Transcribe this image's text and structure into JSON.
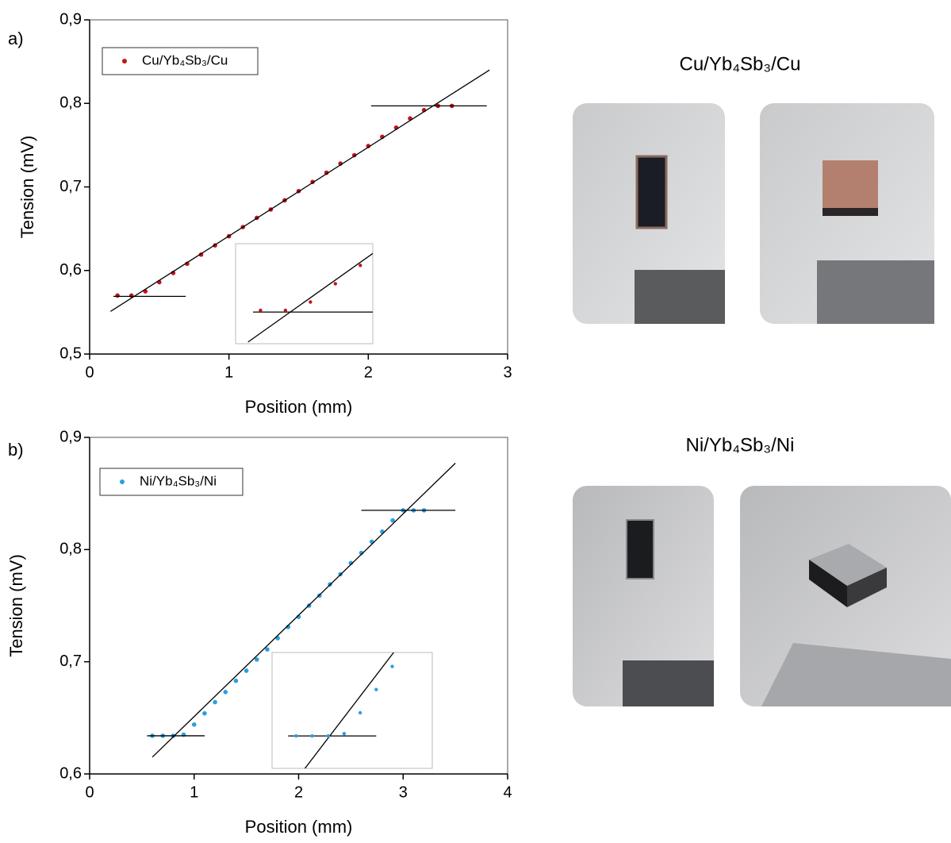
{
  "chart_data": [
    {
      "type": "scatter",
      "panel_label": "a)",
      "xlabel": "Position (mm)",
      "ylabel": "Tension (mV)",
      "xlim": [
        0,
        3
      ],
      "ylim": [
        0.5,
        0.9
      ],
      "xticks": [
        0,
        1,
        2,
        3
      ],
      "yticks": [
        {
          "value": 0.5,
          "label": "0,5"
        },
        {
          "value": 0.6,
          "label": "0,6"
        },
        {
          "value": 0.7,
          "label": "0,7"
        },
        {
          "value": 0.8,
          "label": "0,8"
        },
        {
          "value": 0.9,
          "label": "0,9"
        }
      ],
      "series": [
        {
          "name": "Cu/Yb₄Sb₃/Cu",
          "color": "#c0141c",
          "x": [
            0.2,
            0.3,
            0.4,
            0.5,
            0.6,
            0.7,
            0.8,
            0.9,
            1.0,
            1.1,
            1.2,
            1.3,
            1.4,
            1.5,
            1.6,
            1.7,
            1.8,
            1.9,
            2.0,
            2.1,
            2.2,
            2.3,
            2.4,
            2.5,
            2.6
          ],
          "values": [
            0.57,
            0.57,
            0.575,
            0.586,
            0.597,
            0.608,
            0.619,
            0.63,
            0.641,
            0.652,
            0.663,
            0.673,
            0.684,
            0.695,
            0.706,
            0.717,
            0.728,
            0.738,
            0.749,
            0.76,
            0.771,
            0.782,
            0.792,
            0.797,
            0.797
          ]
        }
      ],
      "fit_lines": [
        {
          "x": [
            0.17,
            0.69
          ],
          "values": [
            0.569,
            0.569
          ]
        },
        {
          "x": [
            0.15,
            2.87
          ],
          "values": [
            0.551,
            0.84
          ]
        },
        {
          "x": [
            2.02,
            2.85
          ],
          "values": [
            0.797,
            0.797
          ]
        }
      ],
      "inset": {
        "xlim": [
          0.1,
          0.65
        ],
        "ylim": [
          0.55,
          0.61
        ]
      }
    },
    {
      "type": "scatter",
      "panel_label": "b)",
      "xlabel": "Position (mm)",
      "ylabel": "Tension (mV)",
      "xlim": [
        0,
        4
      ],
      "ylim": [
        0.6,
        0.9
      ],
      "xticks": [
        0,
        1,
        2,
        3,
        4
      ],
      "yticks": [
        {
          "value": 0.6,
          "label": "0,6"
        },
        {
          "value": 0.7,
          "label": "0,7"
        },
        {
          "value": 0.8,
          "label": "0,8"
        },
        {
          "value": 0.9,
          "label": "0,9"
        }
      ],
      "series": [
        {
          "name": "Ni/Yb₄Sb₃/Ni",
          "color": "#2a9fe0",
          "x": [
            0.6,
            0.7,
            0.8,
            0.9,
            1.0,
            1.1,
            1.2,
            1.3,
            1.4,
            1.5,
            1.6,
            1.7,
            1.8,
            1.9,
            2.0,
            2.1,
            2.2,
            2.3,
            2.4,
            2.5,
            2.6,
            2.7,
            2.8,
            2.9,
            3.0,
            3.1,
            3.2
          ],
          "values": [
            0.634,
            0.634,
            0.634,
            0.635,
            0.644,
            0.654,
            0.664,
            0.673,
            0.683,
            0.692,
            0.702,
            0.711,
            0.721,
            0.731,
            0.74,
            0.75,
            0.759,
            0.769,
            0.778,
            0.788,
            0.797,
            0.807,
            0.816,
            0.826,
            0.835,
            0.835,
            0.835
          ]
        }
      ],
      "fit_lines": [
        {
          "x": [
            0.55,
            1.1
          ],
          "values": [
            0.634,
            0.634
          ]
        },
        {
          "x": [
            0.6,
            3.5
          ],
          "values": [
            0.615,
            0.877
          ]
        },
        {
          "x": [
            2.6,
            3.5
          ],
          "values": [
            0.835,
            0.835
          ]
        }
      ],
      "inset": {
        "xlim": [
          0.45,
          1.45
        ],
        "ylim": [
          0.62,
          0.67
        ]
      }
    }
  ],
  "photos": [
    {
      "title": "Cu/Yb₄Sb₃/Cu"
    },
    {
      "title": "Ni/Yb₄Sb₃/Ni"
    }
  ]
}
